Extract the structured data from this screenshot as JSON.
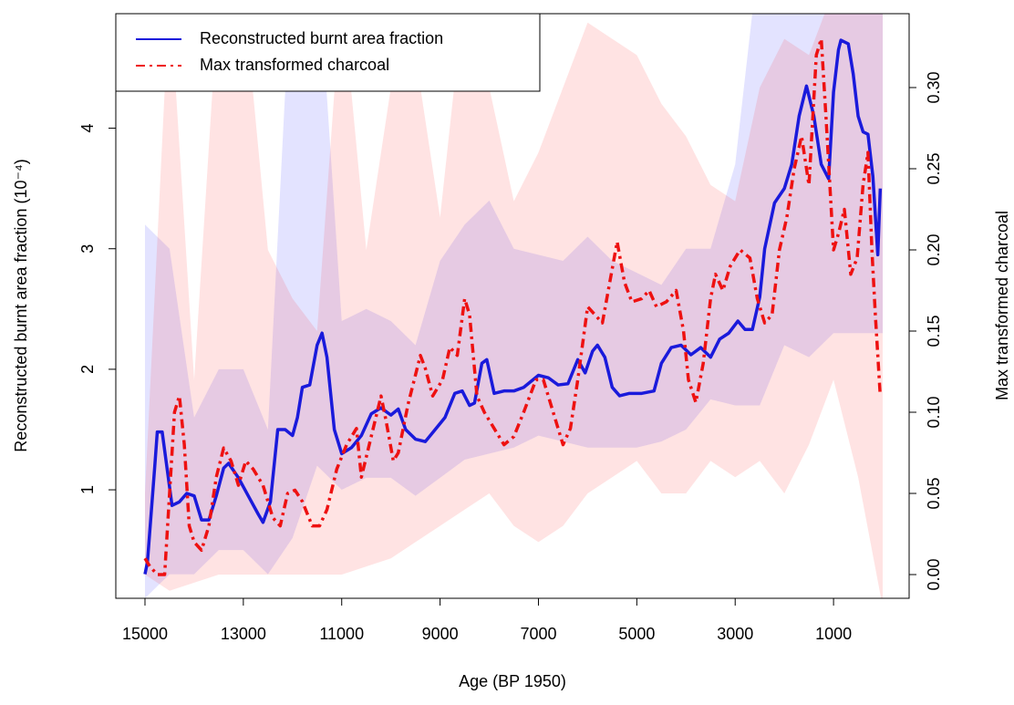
{
  "chart_data": {
    "type": "line",
    "xlabel": "Age (BP 1950)",
    "ylabel": "Reconstructed burnt area fraction (10⁻⁴)",
    "y2label": "Max transformed charcoal",
    "xlim": [
      15593,
      -537
    ],
    "ylim": [
      0.1,
      4.95
    ],
    "y2lim": [
      -0.0146,
      0.3455
    ],
    "xticks": [
      15000,
      13000,
      11000,
      9000,
      7000,
      5000,
      3000,
      1000
    ],
    "yticks": [
      1,
      2,
      3,
      4
    ],
    "y2ticks": [
      {
        "value": 0,
        "label": "0.00"
      },
      {
        "value": 0.05,
        "label": "0.05"
      },
      {
        "value": 0.1,
        "label": "0.10"
      },
      {
        "value": 0.15,
        "label": "0.15"
      },
      {
        "value": 0.2,
        "label": "0.20"
      },
      {
        "value": 0.25,
        "label": "0.25"
      },
      {
        "value": 0.3,
        "label": "0.30"
      }
    ],
    "legend": "top-left",
    "series": [
      {
        "name": "Reconstructed burnt area fraction",
        "color": "#1a1adb",
        "linestyle": "solid",
        "x": [
          15000,
          14950,
          14800,
          14750,
          14650,
          14450,
          14300,
          14150,
          14000,
          13850,
          13700,
          13550,
          13400,
          13300,
          13100,
          12900,
          12700,
          12600,
          12450,
          12300,
          12150,
          12000,
          11900,
          11800,
          11650,
          11500,
          11400,
          11300,
          11150,
          11000,
          10800,
          10600,
          10400,
          10200,
          10000,
          9850,
          9700,
          9500,
          9300,
          9100,
          8900,
          8700,
          8550,
          8400,
          8300,
          8150,
          8050,
          7900,
          7700,
          7500,
          7300,
          7000,
          6800,
          6600,
          6400,
          6200,
          6050,
          5900,
          5800,
          5650,
          5500,
          5350,
          5150,
          4900,
          4650,
          4500,
          4300,
          4100,
          3900,
          3700,
          3500,
          3315,
          3130,
          2945,
          2800,
          2650,
          2500,
          2400,
          2200,
          2000,
          1850,
          1700,
          1550,
          1400,
          1250,
          1100,
          1000,
          900,
          850,
          700,
          600,
          500,
          400,
          300,
          200,
          100,
          50
        ],
        "values": [
          0.3,
          0.4,
          1.2,
          1.48,
          1.48,
          0.87,
          0.9,
          0.97,
          0.95,
          0.75,
          0.75,
          0.95,
          1.18,
          1.22,
          1.1,
          0.95,
          0.8,
          0.73,
          0.9,
          1.5,
          1.5,
          1.45,
          1.6,
          1.85,
          1.87,
          2.2,
          2.3,
          2.1,
          1.5,
          1.3,
          1.35,
          1.45,
          1.63,
          1.68,
          1.62,
          1.67,
          1.5,
          1.42,
          1.4,
          1.5,
          1.6,
          1.8,
          1.82,
          1.7,
          1.72,
          2.05,
          2.08,
          1.8,
          1.82,
          1.82,
          1.85,
          1.95,
          1.93,
          1.87,
          1.88,
          2.08,
          1.97,
          2.15,
          2.2,
          2.1,
          1.85,
          1.78,
          1.8,
          1.8,
          1.82,
          2.05,
          2.18,
          2.2,
          2.12,
          2.18,
          2.1,
          2.25,
          2.3,
          2.4,
          2.33,
          2.33,
          2.6,
          3.0,
          3.38,
          3.5,
          3.7,
          4.1,
          4.35,
          4.1,
          3.7,
          3.58,
          4.3,
          4.65,
          4.73,
          4.7,
          4.45,
          4.1,
          3.97,
          3.95,
          3.6,
          2.95,
          3.5
        ]
      },
      {
        "name": "Max transformed charcoal",
        "color": "#ee1111",
        "linestyle": "dashdot",
        "axis": "y2",
        "x": [
          15000,
          14900,
          14750,
          14600,
          14500,
          14400,
          14300,
          14200,
          14100,
          14000,
          13850,
          13700,
          13550,
          13400,
          13250,
          13100,
          12950,
          12800,
          12600,
          12400,
          12250,
          12100,
          11950,
          11800,
          11600,
          11450,
          11300,
          11100,
          10900,
          10700,
          10600,
          10400,
          10200,
          10100,
          9950,
          9850,
          9650,
          9400,
          9300,
          9150,
          8950,
          8800,
          8650,
          8500,
          8400,
          8250,
          8100,
          7900,
          7700,
          7500,
          7300,
          7050,
          6900,
          6700,
          6500,
          6350,
          6200,
          6000,
          5850,
          5700,
          5550,
          5400,
          5250,
          5100,
          4900,
          4750,
          4600,
          4400,
          4200,
          4050,
          3950,
          3800,
          3650,
          3500,
          3400,
          3250,
          3100,
          2900,
          2700,
          2550,
          2400,
          2250,
          2100,
          1950,
          1800,
          1650,
          1500,
          1350,
          1250,
          1150,
          1000,
          900,
          780,
          650,
          520,
          400,
          300,
          220,
          150,
          50
        ],
        "values": [
          0.01,
          0.005,
          0,
          0,
          0.05,
          0.1,
          0.11,
          0.08,
          0.03,
          0.02,
          0.015,
          0.03,
          0.06,
          0.078,
          0.07,
          0.055,
          0.07,
          0.065,
          0.055,
          0.035,
          0.03,
          0.05,
          0.052,
          0.045,
          0.03,
          0.03,
          0.04,
          0.065,
          0.08,
          0.09,
          0.06,
          0.085,
          0.11,
          0.095,
          0.07,
          0.075,
          0.105,
          0.135,
          0.127,
          0.11,
          0.12,
          0.14,
          0.135,
          0.17,
          0.16,
          0.11,
          0.1,
          0.09,
          0.08,
          0.085,
          0.1,
          0.12,
          0.12,
          0.1,
          0.08,
          0.09,
          0.12,
          0.165,
          0.16,
          0.155,
          0.18,
          0.205,
          0.18,
          0.168,
          0.17,
          0.175,
          0.165,
          0.168,
          0.175,
          0.15,
          0.12,
          0.106,
          0.13,
          0.17,
          0.185,
          0.175,
          0.19,
          0.2,
          0.195,
          0.17,
          0.155,
          0.16,
          0.2,
          0.22,
          0.25,
          0.27,
          0.24,
          0.32,
          0.33,
          0.28,
          0.2,
          0.21,
          0.225,
          0.185,
          0.195,
          0.24,
          0.26,
          0.2,
          0.16,
          0.11
        ]
      }
    ],
    "bands": [
      {
        "color": "#0000ff",
        "opacity": 0.11,
        "x": [
          15000,
          14500,
          14000,
          13500,
          13000,
          12500,
          12000,
          11500,
          11000,
          10500,
          10000,
          9500,
          9000,
          8500,
          8000,
          7500,
          7000,
          6500,
          6000,
          5500,
          5000,
          4500,
          4000,
          3500,
          3000,
          2500,
          2000,
          1500,
          1000,
          500,
          0
        ],
        "lower": [
          0.1,
          0.3,
          0.3,
          0.5,
          0.5,
          0.3,
          0.6,
          1.2,
          1.0,
          1.1,
          1.1,
          0.95,
          1.1,
          1.25,
          1.3,
          1.35,
          1.45,
          1.4,
          1.35,
          1.35,
          1.35,
          1.4,
          1.5,
          1.75,
          1.7,
          1.7,
          2.2,
          2.1,
          2.3,
          2.3,
          2.3
        ],
        "upper": [
          3.2,
          3.0,
          1.6,
          2.0,
          2.0,
          1.5,
          5.5,
          5.5,
          2.4,
          2.5,
          2.4,
          2.2,
          2.9,
          3.2,
          3.4,
          3.0,
          2.95,
          2.9,
          3.1,
          2.9,
          2.8,
          2.7,
          3.0,
          3.0,
          3.7,
          5.5,
          5.5,
          5.5,
          5.5,
          5.5,
          5.5
        ]
      },
      {
        "color": "#ff0000",
        "opacity": 0.11,
        "axis": "y2",
        "x": [
          15000,
          14500,
          14000,
          13500,
          13000,
          12500,
          12000,
          11500,
          11000,
          10500,
          10000,
          9500,
          9000,
          8500,
          8000,
          7500,
          7000,
          6500,
          6000,
          5500,
          5000,
          4500,
          4000,
          3500,
          3000,
          2500,
          2000,
          1500,
          1000,
          500,
          0
        ],
        "lower": [
          0,
          -0.01,
          -0.005,
          0,
          0,
          0,
          0,
          0,
          0,
          0.005,
          0.01,
          0.02,
          0.03,
          0.04,
          0.05,
          0.03,
          0.02,
          0.03,
          0.05,
          0.06,
          0.07,
          0.05,
          0.05,
          0.07,
          0.06,
          0.07,
          0.05,
          0.08,
          0.12,
          0.06,
          -0.02
        ],
        "upper": [
          0.05,
          0.36,
          0.12,
          0.36,
          0.36,
          0.2,
          0.17,
          0.15,
          0.36,
          0.2,
          0.3,
          0.32,
          0.22,
          0.36,
          0.3,
          0.23,
          0.26,
          0.3,
          0.34,
          0.33,
          0.32,
          0.29,
          0.27,
          0.24,
          0.23,
          0.3,
          0.33,
          0.32,
          0.36,
          0.36,
          0.36
        ]
      }
    ]
  }
}
